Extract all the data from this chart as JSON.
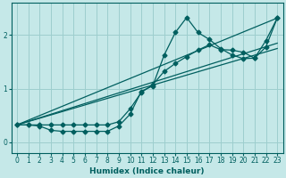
{
  "xlabel": "Humidex (Indice chaleur)",
  "bg_color": "#c5e8e8",
  "grid_color": "#9dcece",
  "line_color": "#005f5f",
  "xlim": [
    -0.5,
    23.5
  ],
  "ylim": [
    -0.2,
    2.6
  ],
  "xticks": [
    0,
    1,
    2,
    3,
    4,
    5,
    6,
    7,
    8,
    9,
    10,
    11,
    12,
    13,
    14,
    15,
    16,
    17,
    18,
    19,
    20,
    21,
    22,
    23
  ],
  "yticks": [
    0,
    1,
    2
  ],
  "curve1_x": [
    0,
    1,
    2,
    3,
    4,
    5,
    6,
    7,
    8,
    9,
    10,
    11,
    12,
    13,
    14,
    15,
    16,
    17,
    18,
    19,
    20,
    21,
    22,
    23
  ],
  "curve1_y": [
    0.32,
    0.32,
    0.3,
    0.22,
    0.2,
    0.2,
    0.2,
    0.2,
    0.2,
    0.3,
    0.52,
    0.95,
    1.05,
    1.62,
    2.05,
    2.33,
    2.05,
    1.92,
    1.75,
    1.63,
    1.56,
    1.57,
    1.9,
    2.32
  ],
  "curve2_x": [
    0,
    1,
    2,
    3,
    4,
    5,
    6,
    7,
    8,
    9,
    10,
    11,
    12,
    13,
    14,
    15,
    16,
    17,
    18,
    19,
    20,
    21,
    22,
    23
  ],
  "curve2_y": [
    0.32,
    0.32,
    0.32,
    0.32,
    0.32,
    0.32,
    0.32,
    0.32,
    0.32,
    0.38,
    0.62,
    0.93,
    1.07,
    1.32,
    1.47,
    1.6,
    1.72,
    1.82,
    1.73,
    1.72,
    1.68,
    1.57,
    1.78,
    2.32
  ],
  "line1_x": [
    0,
    23
  ],
  "line1_y": [
    0.32,
    1.75
  ],
  "line2_x": [
    0,
    23
  ],
  "line2_y": [
    0.32,
    2.32
  ],
  "line3_x": [
    0,
    23
  ],
  "line3_y": [
    0.32,
    1.85
  ]
}
